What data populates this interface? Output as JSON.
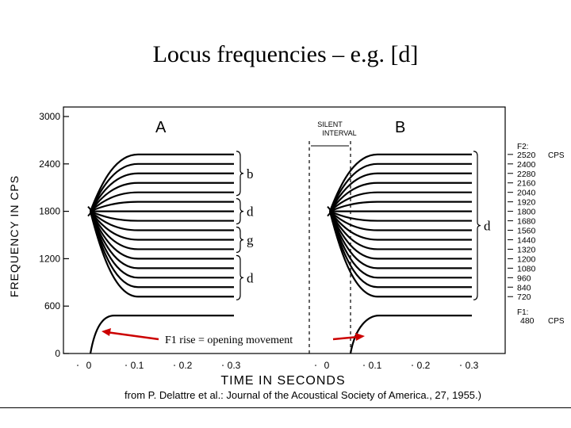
{
  "slide": {
    "title": "Locus frequencies – e.g. [d]",
    "citation": "from P. Delattre et al.: Journal of the Acoustical Society of America., 27, 1955.)",
    "annotation": "F1 rise = opening movement",
    "annotation_color": "#cc0000"
  },
  "chart_data": {
    "type": "line",
    "title": "",
    "xlabel": "TIME IN SECONDS",
    "ylabel": "FREQUENCY IN CPS",
    "ylim": [
      0,
      3000
    ],
    "y_ticks": [
      "3000",
      "2400",
      "1800",
      "1200",
      "600",
      "0"
    ],
    "panels": [
      {
        "label": "A",
        "x_ticks": [
          "0",
          "0.1",
          "0.2",
          "0.3"
        ],
        "onset_frequency": 1800,
        "f2_targets": [
          2520,
          2400,
          2280,
          2160,
          2040,
          1920,
          1800,
          1680,
          1560,
          1440,
          1320,
          1200,
          1080,
          960,
          840,
          720
        ],
        "f1_target": 480,
        "groups": [
          {
            "label": "b",
            "from": 2520,
            "to": 2040
          },
          {
            "label": "d",
            "from": 1920,
            "to": 1680
          },
          {
            "label": "g",
            "from": 1560,
            "to": 1320
          },
          {
            "label": "d",
            "from": 1200,
            "to": 720
          }
        ]
      },
      {
        "label": "B",
        "x_ticks": [
          "0",
          "0.1",
          "0.2",
          "0.3"
        ],
        "interval_label": "SILENT INTERVAL",
        "onset_frequency": 1800,
        "f2_targets": [
          2520,
          2400,
          2280,
          2160,
          2040,
          1920,
          1800,
          1680,
          1560,
          1440,
          1320,
          1200,
          1080,
          960,
          840,
          720
        ],
        "f1_target": 480,
        "groups": [
          {
            "label": "d",
            "from": 2520,
            "to": 720
          }
        ]
      }
    ],
    "legend": {
      "f2_title": "F2:",
      "unit": "CPS",
      "f2_values": [
        "2520",
        "2400",
        "2280",
        "2160",
        "2040",
        "1920",
        "1800",
        "1680",
        "1560",
        "1440",
        "1320",
        "1200",
        "1080",
        "960",
        "840",
        "720"
      ],
      "f1_title": "F1:",
      "f1_value": "480"
    }
  }
}
